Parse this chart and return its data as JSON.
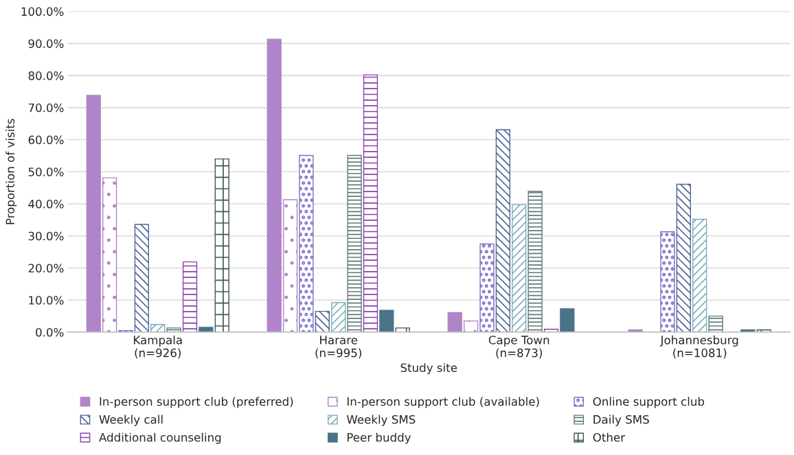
{
  "chart_data": {
    "type": "bar",
    "xlabel": "Study site",
    "ylabel": "Proportion of visits",
    "categories": [
      "Kampala\n(n=926)",
      "Harare\n(n=995)",
      "Cape Town\n(n=873)",
      "Johannesburg\n(n=1081)"
    ],
    "series": [
      {
        "name": "In-person support club (preferred)",
        "color": "#b084c8",
        "values": [
          73.8,
          91.3,
          6.1,
          0.7
        ]
      },
      {
        "name": "In-person support club (available)",
        "color": "#b084c8",
        "values": [
          48.1,
          41.3,
          3.5,
          0
        ]
      },
      {
        "name": "Online support club",
        "color": "#7b6fc9",
        "values": [
          0.5,
          55.1,
          27.5,
          31.3
        ]
      },
      {
        "name": "Weekly call",
        "color": "#4f6496",
        "values": [
          33.6,
          6.5,
          63.1,
          46.1
        ]
      },
      {
        "name": "Weekly SMS",
        "color": "#7aaeb8",
        "values": [
          2.4,
          9.2,
          39.7,
          35.2
        ]
      },
      {
        "name": "Daily SMS",
        "color": "#5f7a7a",
        "values": [
          1.3,
          55.1,
          43.9,
          5.0
        ]
      },
      {
        "name": "Additional counseling",
        "color": "#8a3fae",
        "values": [
          21.9,
          80.2,
          0.9,
          0
        ]
      },
      {
        "name": "Peer buddy",
        "color": "#4a7388",
        "values": [
          1.5,
          6.8,
          7.3,
          0.7
        ]
      },
      {
        "name": "Other",
        "color": "#3f5557",
        "values": [
          54.0,
          1.3,
          0,
          0.7
        ]
      }
    ],
    "ylim": [
      0,
      100
    ],
    "yticks": [
      {
        "value": 0,
        "label": "0.0%"
      },
      {
        "value": 10,
        "label": "10.0%"
      },
      {
        "value": 20,
        "label": "20.0%"
      },
      {
        "value": 30,
        "label": "30.0%"
      },
      {
        "value": 40,
        "label": "40.0%"
      },
      {
        "value": 50,
        "label": "50.0%"
      },
      {
        "value": 60,
        "label": "60.0%"
      },
      {
        "value": 70,
        "label": "70.0%"
      },
      {
        "value": 80,
        "label": "80.0%"
      },
      {
        "value": 90,
        "label": "90.0%"
      },
      {
        "value": 100,
        "label": "100.0%"
      }
    ],
    "grid": "y",
    "legend": "bottom"
  }
}
